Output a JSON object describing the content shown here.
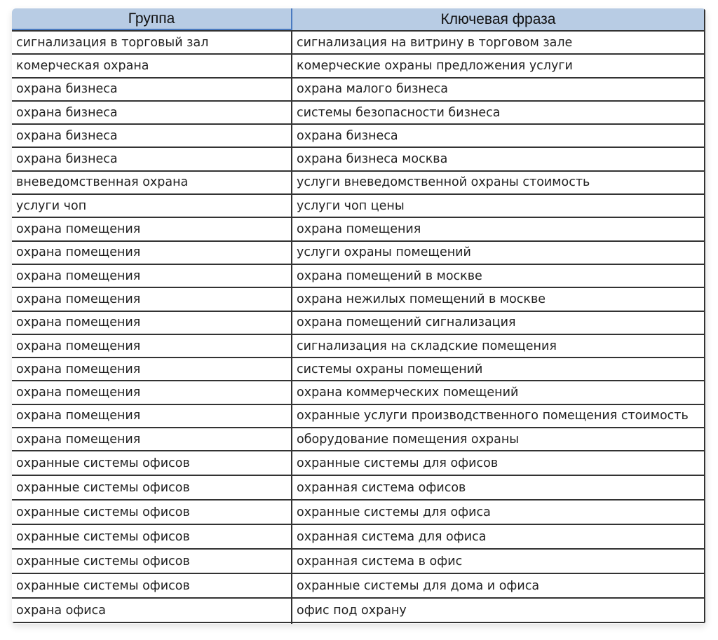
{
  "table": {
    "headers": [
      "Группа",
      "Ключевая фраза"
    ],
    "rows": [
      [
        "сигнализация в торговый зал",
        "сигнализация на витрину в торговом зале"
      ],
      [
        "комерческая охрана",
        "комерческие охраны предложения услуги"
      ],
      [
        "охрана бизнеса",
        "охрана малого бизнеса"
      ],
      [
        "охрана бизнеса",
        "системы безопасности бизнеса"
      ],
      [
        "охрана бизнеса",
        "охрана бизнеса"
      ],
      [
        "охрана бизнеса",
        "охрана бизнеса москва"
      ],
      [
        "вневедомственная охрана",
        "услуги вневедомственной охраны стоимость"
      ],
      [
        "услуги чоп",
        "услуги чоп цены"
      ],
      [
        "охрана помещения",
        "охрана помещения"
      ],
      [
        "охрана помещения",
        "услуги охраны помещений"
      ],
      [
        "охрана помещения",
        "охрана помещений в москве"
      ],
      [
        "охрана помещения",
        "охрана нежилых помещений в москве"
      ],
      [
        "охрана помещения",
        "охрана помещений сигнализация"
      ],
      [
        "охрана помещения",
        "сигнализация на складские помещения"
      ],
      [
        "охрана помещения",
        "системы охраны помещений"
      ],
      [
        "охрана помещения",
        "охрана коммерческих помещений"
      ],
      [
        "охрана помещения",
        "охранные услуги производственного помещения стоимость"
      ],
      [
        "охрана помещения",
        "оборудование помещения охраны"
      ],
      [
        "охранные системы офисов",
        "охранные системы для офисов"
      ],
      [
        "охранные системы офисов",
        "охранная система офисов"
      ],
      [
        "охранные системы офисов",
        "охранные системы для офиса"
      ],
      [
        "охранные системы офисов",
        "охранная система для офиса"
      ],
      [
        "охранные системы офисов",
        "охранная система в офис"
      ],
      [
        "охранные системы офисов",
        "охранные системы для дома и офиса"
      ],
      [
        "охрана офиса",
        "офис под охрану"
      ],
      [
        "",
        ""
      ]
    ]
  },
  "colors": {
    "header_bg": "#b8cce4",
    "grid": "#333333",
    "selection": "#4a7ac0"
  }
}
